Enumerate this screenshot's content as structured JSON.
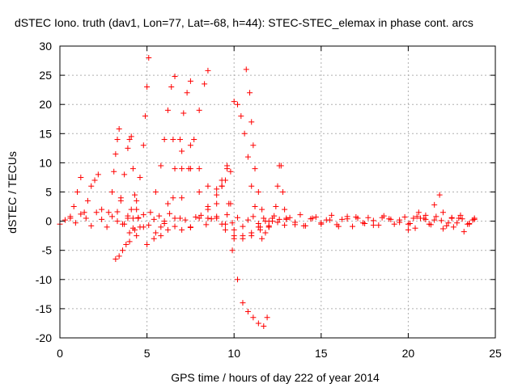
{
  "chart_data": {
    "type": "scatter",
    "title": "dSTEC Iono. truth (dav1, Lon=77, Lat=-68, h=44): STEC-STEC_elemax in phase cont. arcs",
    "xlabel": "GPS time / hours of day 222 of year 2014",
    "ylabel": "dSTEC  / TECUs",
    "xlim": [
      0,
      25
    ],
    "ylim": [
      -20,
      30
    ],
    "x_ticks": [
      "0",
      "5",
      "10",
      "15",
      "20",
      "25"
    ],
    "y_ticks": [
      "-20",
      "-15",
      "-10",
      "-5",
      "0",
      "5",
      "10",
      "15",
      "20",
      "25",
      "30"
    ],
    "grid": true,
    "marker": "+",
    "color": "#ff0000",
    "series": [
      {
        "x": [
          0.0,
          0.3,
          0.6,
          0.9,
          1.2,
          1.5,
          1.8,
          2.1,
          2.4,
          2.7,
          3.0,
          3.3,
          3.6,
          3.9,
          4.2,
          4.5,
          4.8,
          5.1,
          5.4,
          5.7,
          6.0,
          6.3,
          6.6,
          6.9,
          7.2,
          7.5,
          7.8,
          8.1,
          8.4,
          8.7,
          9.0,
          9.3,
          9.6,
          9.9,
          10.2,
          10.5,
          10.8,
          11.1,
          11.4,
          11.7,
          12.0,
          12.3,
          12.6,
          12.9,
          13.2,
          13.5,
          13.8,
          14.1,
          14.4,
          14.7,
          15.0,
          15.3,
          15.6,
          15.9,
          16.2,
          16.5,
          16.8,
          17.1,
          17.4,
          17.7,
          18.0,
          18.3,
          18.6,
          18.9,
          19.2,
          19.5,
          19.8,
          20.1,
          20.4,
          20.7,
          21.0,
          21.3,
          21.6,
          21.9,
          22.2,
          22.5,
          22.8,
          23.1,
          23.4,
          23.7
        ],
        "y": [
          -0.5,
          0.2,
          0.8,
          -0.3,
          1.2,
          0.5,
          -0.8,
          1.5,
          0.3,
          -1.0,
          0.8,
          1.6,
          -0.5,
          0.9,
          -1.2,
          0.6,
          1.1,
          -0.7,
          0.3,
          0.9,
          -0.4,
          1.3,
          -0.9,
          0.5,
          0.2,
          -1.1,
          0.7,
          1.0,
          -0.6,
          0.4,
          0.8,
          -0.5,
          1.1,
          -0.3,
          0.6,
          -0.9,
          0.2,
          0.8,
          -0.4,
          0.5,
          -1.0,
          0.9,
          0.3,
          -0.7,
          0.6,
          -0.2,
          1.1,
          -0.8,
          0.4,
          0.7,
          -0.5,
          0.2,
          1.0,
          -0.6,
          0.3,
          0.8,
          -0.9,
          0.5,
          -0.3,
          0.6,
          0.1,
          -0.7,
          0.9,
          0.4,
          -0.5,
          0.2,
          0.7,
          -0.4,
          -1.2,
          0.5,
          0.3,
          -0.6,
          0.8,
          0.1,
          -0.8,
          0.6,
          -0.3,
          0.4,
          -0.5,
          0.2
        ]
      },
      {
        "x": [
          0.6,
          0.8,
          1.0,
          1.2,
          1.4,
          1.6,
          1.8,
          2.0,
          2.2,
          2.4
        ],
        "y": [
          0.5,
          2.5,
          5.0,
          7.5,
          1.5,
          3.5,
          6.0,
          7.0,
          8.0,
          2.0
        ]
      },
      {
        "x": [
          2.8,
          3.0,
          3.1,
          3.2,
          3.3,
          3.4,
          3.5,
          3.7,
          3.9,
          4.1,
          4.3
        ],
        "y": [
          1.5,
          5.0,
          8.5,
          11.5,
          14.0,
          15.8,
          4.0,
          -0.5,
          0.5,
          2.0,
          -1.5
        ]
      },
      {
        "x": [
          3.2,
          3.4,
          3.6,
          3.8,
          4.0,
          4.2,
          4.4,
          4.6,
          4.8,
          4.9,
          5.0,
          5.1
        ],
        "y": [
          -6.5,
          -6.0,
          -5.0,
          -4.0,
          -2.0,
          0.5,
          3.5,
          7.5,
          13.0,
          18.0,
          23.0,
          28.0
        ]
      },
      {
        "x": [
          3.3,
          3.5,
          3.7,
          3.9,
          4.0,
          4.1,
          4.2,
          4.3,
          4.4,
          4.5,
          4.6
        ],
        "y": [
          0.0,
          3.5,
          8.0,
          12.5,
          14.0,
          14.5,
          9.0,
          4.5,
          2.0,
          0.5,
          -1.0
        ]
      },
      {
        "x": [
          4.0,
          4.4,
          4.8,
          5.2,
          5.5,
          5.8,
          6.0,
          6.2,
          6.4,
          6.6
        ],
        "y": [
          -3.5,
          -2.5,
          -1.0,
          1.5,
          5.0,
          9.5,
          14.0,
          19.0,
          23.0,
          24.8
        ]
      },
      {
        "x": [
          5.0,
          5.4,
          5.8,
          6.2,
          6.6,
          6.9,
          7.1,
          7.3,
          7.5
        ],
        "y": [
          -4.0,
          -3.0,
          -1.0,
          3.0,
          9.0,
          14.0,
          18.5,
          22.0,
          24.0
        ]
      },
      {
        "x": [
          5.8,
          6.2,
          6.6,
          7.0,
          7.4,
          7.7,
          8.0,
          8.3,
          8.5
        ],
        "y": [
          -2.5,
          -1.5,
          0.5,
          4.0,
          9.0,
          14.0,
          19.0,
          23.5,
          25.8
        ]
      },
      {
        "x": [
          5.5,
          6.0,
          6.5,
          7.0,
          7.5,
          8.0,
          8.5,
          9.0,
          9.3,
          9.6,
          9.8
        ],
        "y": [
          -2.0,
          0.0,
          4.0,
          9.0,
          13.0,
          9.0,
          6.0,
          5.5,
          7.0,
          9.5,
          8.5
        ]
      },
      {
        "x": [
          6.5,
          7.0,
          7.5,
          8.0,
          8.5,
          9.0,
          9.5,
          10.0,
          10.5,
          11.0,
          11.5
        ],
        "y": [
          14.0,
          12.0,
          9.0,
          5.0,
          2.0,
          0.5,
          -0.5,
          -1.5,
          -2.5,
          -2.0,
          -1.0
        ]
      },
      {
        "x": [
          8.5,
          9.0,
          9.3,
          9.6,
          9.8,
          10.0,
          10.2,
          10.5,
          10.8,
          11.1,
          11.4,
          11.7,
          11.9
        ],
        "y": [
          0.5,
          3.0,
          6.0,
          9.0,
          3.0,
          -3.0,
          -10.0,
          -14.0,
          -15.5,
          -16.5,
          -17.5,
          -18.0,
          -16.5
        ]
      },
      {
        "x": [
          7.0,
          7.5,
          8.0,
          8.5,
          9.0,
          9.3,
          9.5,
          9.7,
          9.9
        ],
        "y": [
          -1.5,
          -1.0,
          0.5,
          2.5,
          4.5,
          6.0,
          7.0,
          3.0,
          -5.0
        ]
      },
      {
        "x": [
          10.0,
          10.2,
          10.4,
          10.6,
          10.8,
          11.0,
          11.2,
          11.4,
          11.6,
          11.8,
          12.0
        ],
        "y": [
          20.5,
          20.0,
          18.0,
          15.0,
          11.0,
          6.0,
          2.5,
          -1.0,
          -3.0,
          -2.0,
          0.0
        ]
      },
      {
        "x": [
          10.7,
          10.9,
          11.0,
          11.1,
          11.2,
          11.4,
          11.6,
          11.8,
          12.0,
          12.2
        ],
        "y": [
          26.0,
          22.0,
          17.0,
          13.0,
          9.0,
          5.0,
          2.0,
          0.0,
          -1.0,
          0.5
        ]
      },
      {
        "x": [
          12.2,
          12.4,
          12.5,
          12.6,
          12.7,
          12.8,
          12.9,
          13.0
        ],
        "y": [
          0.0,
          2.5,
          6.0,
          9.5,
          9.5,
          5.0,
          2.0,
          0.5
        ]
      },
      {
        "x": [
          9.5,
          10.0,
          10.5,
          11.0,
          11.5,
          12.0,
          12.5,
          13.0,
          13.5,
          14.0,
          14.5,
          15.0,
          15.5,
          16.0,
          16.5,
          17.0,
          17.5,
          18.0,
          18.5,
          19.0,
          19.5,
          20.0,
          20.5,
          21.0,
          21.5,
          22.0,
          22.5,
          23.0,
          23.5,
          23.8
        ],
        "y": [
          -1.5,
          -2.5,
          -3.0,
          -2.5,
          -1.5,
          -0.8,
          -0.2,
          0.3,
          -0.6,
          -0.8,
          0.5,
          -0.3,
          0.2,
          -0.9,
          0.4,
          0.7,
          -0.4,
          -0.7,
          0.6,
          0.3,
          -0.2,
          -0.5,
          0.8,
          1.0,
          0.2,
          -1.3,
          0.5,
          1.0,
          -0.4,
          0.3
        ]
      },
      {
        "x": [
          20.0,
          20.3,
          20.6,
          20.9,
          21.2,
          21.5,
          21.8,
          22.0,
          22.3,
          22.6,
          22.9,
          23.2,
          23.5,
          23.8
        ],
        "y": [
          -1.5,
          0.5,
          1.5,
          0.5,
          -0.5,
          2.8,
          4.5,
          1.5,
          -0.3,
          -1.0,
          0.5,
          -1.8,
          -0.5,
          0.5
        ]
      }
    ]
  }
}
